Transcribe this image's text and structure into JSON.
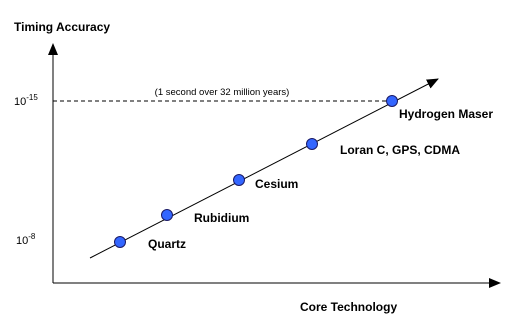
{
  "title": "Timing Accuracy",
  "y_ticks": [
    {
      "base": "10",
      "exponent": "-15"
    },
    {
      "base": "10",
      "exponent": "-8"
    }
  ],
  "x_label": "Core Technology",
  "annotation": "(1 second over 32 million years)",
  "points": [
    {
      "label": "Quartz"
    },
    {
      "label": "Rubidium"
    },
    {
      "label": "Cesium"
    },
    {
      "label": "Loran C, GPS, CDMA"
    },
    {
      "label": "Hydrogen Maser"
    }
  ]
}
